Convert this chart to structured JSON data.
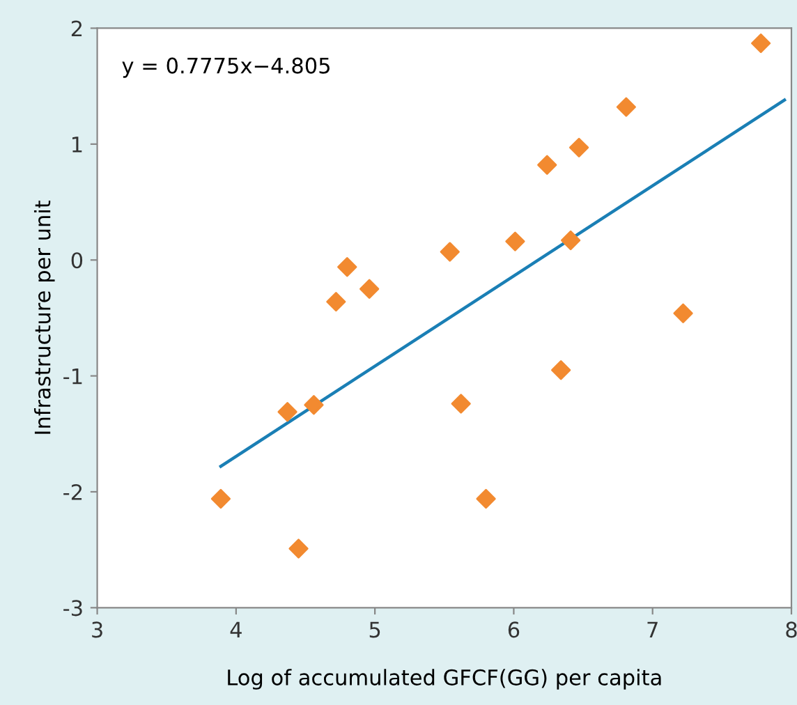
{
  "chart_data": {
    "type": "scatter",
    "xlabel": "Log of accumulated GFCF(GG) per capita",
    "ylabel": "Infrastructure per unit",
    "annotations": [
      "y = 0.7775x−4.805"
    ],
    "xlim": [
      3,
      8
    ],
    "ylim": [
      -3,
      2
    ],
    "xticks": [
      3,
      4,
      5,
      6,
      7,
      8
    ],
    "yticks": [
      -3,
      -2,
      -1,
      0,
      1,
      2
    ],
    "grid": false,
    "series": [
      {
        "marker": "diamond",
        "color": "#f28a30",
        "x": [
          3.89,
          4.37,
          4.45,
          4.56,
          4.72,
          4.8,
          4.96,
          5.54,
          5.62,
          5.8,
          6.01,
          6.24,
          6.34,
          6.41,
          6.47,
          6.81,
          7.22,
          7.78
        ],
        "values": [
          -2.06,
          -1.31,
          -2.49,
          -1.25,
          -0.36,
          -0.06,
          -0.25,
          0.07,
          -1.24,
          -2.06,
          0.16,
          0.82,
          -0.95,
          0.17,
          0.97,
          1.32,
          -0.46,
          1.87
        ]
      },
      {
        "type": "line",
        "color": "#1a7fb5",
        "x": [
          3.89,
          7.95
        ],
        "values": [
          -1.78,
          1.38
        ]
      }
    ]
  }
}
